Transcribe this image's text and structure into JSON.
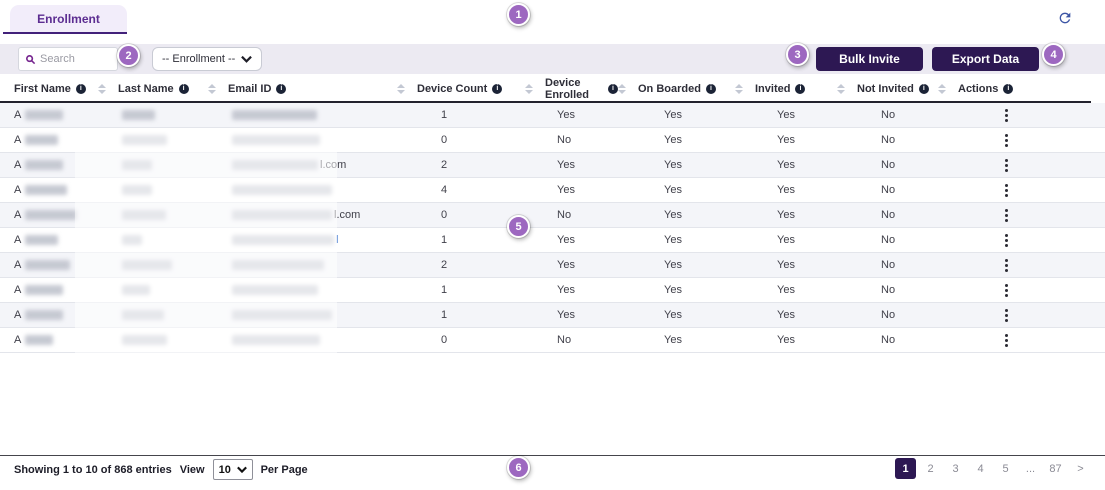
{
  "tab": {
    "label": "Enrollment"
  },
  "toolbar": {
    "search_placeholder": "Search",
    "enrollment_filter_value": "-- Enrollment --",
    "bulk_invite_label": "Bulk Invite",
    "export_data_label": "Export Data"
  },
  "table": {
    "columns": [
      {
        "label": "First Name",
        "sortable": true
      },
      {
        "label": "Last Name",
        "sortable": true
      },
      {
        "label": "Email ID",
        "sortable": true
      },
      {
        "label": "Device Count",
        "sortable": true
      },
      {
        "label": "Device Enrolled",
        "sortable": true
      },
      {
        "label": "On Boarded",
        "sortable": true
      },
      {
        "label": "Invited",
        "sortable": true
      },
      {
        "label": "Not Invited",
        "sortable": true
      },
      {
        "label": "Actions",
        "sortable": false
      }
    ],
    "rows": [
      {
        "first_initial": "A",
        "first_w": 38,
        "last_w": 33,
        "email_w": 85,
        "email_suffix": "",
        "suffix_blue": false,
        "device_count": "1",
        "device_enrolled": "Yes",
        "on_boarded": "Yes",
        "invited": "Yes",
        "not_invited": "No"
      },
      {
        "first_initial": "A",
        "first_w": 33,
        "last_w": 45,
        "email_w": 88,
        "email_suffix": "",
        "suffix_blue": false,
        "device_count": "0",
        "device_enrolled": "No",
        "on_boarded": "Yes",
        "invited": "Yes",
        "not_invited": "No"
      },
      {
        "first_initial": "A",
        "first_w": 38,
        "last_w": 30,
        "email_w": 86,
        "email_suffix": "l.com",
        "suffix_blue": false,
        "device_count": "2",
        "device_enrolled": "Yes",
        "on_boarded": "Yes",
        "invited": "Yes",
        "not_invited": "No"
      },
      {
        "first_initial": "A",
        "first_w": 42,
        "last_w": 30,
        "email_w": 100,
        "email_suffix": "",
        "suffix_blue": false,
        "device_count": "4",
        "device_enrolled": "Yes",
        "on_boarded": "Yes",
        "invited": "Yes",
        "not_invited": "No"
      },
      {
        "first_initial": "A",
        "first_w": 52,
        "last_w": 44,
        "email_w": 100,
        "email_suffix": "l.com",
        "suffix_blue": false,
        "device_count": "0",
        "device_enrolled": "No",
        "on_boarded": "Yes",
        "invited": "Yes",
        "not_invited": "No"
      },
      {
        "first_initial": "A",
        "first_w": 33,
        "last_w": 20,
        "email_w": 102,
        "email_suffix": "l",
        "suffix_blue": true,
        "device_count": "1",
        "device_enrolled": "Yes",
        "on_boarded": "Yes",
        "invited": "Yes",
        "not_invited": "No"
      },
      {
        "first_initial": "A",
        "first_w": 45,
        "last_w": 50,
        "email_w": 92,
        "email_suffix": "",
        "suffix_blue": false,
        "device_count": "2",
        "device_enrolled": "Yes",
        "on_boarded": "Yes",
        "invited": "Yes",
        "not_invited": "No"
      },
      {
        "first_initial": "A",
        "first_w": 38,
        "last_w": 28,
        "email_w": 86,
        "email_suffix": "",
        "suffix_blue": false,
        "device_count": "1",
        "device_enrolled": "Yes",
        "on_boarded": "Yes",
        "invited": "Yes",
        "not_invited": "No"
      },
      {
        "first_initial": "A",
        "first_w": 38,
        "last_w": 42,
        "email_w": 100,
        "email_suffix": "",
        "suffix_blue": false,
        "device_count": "1",
        "device_enrolled": "Yes",
        "on_boarded": "Yes",
        "invited": "Yes",
        "not_invited": "No"
      },
      {
        "first_initial": "A",
        "first_w": 28,
        "last_w": 45,
        "email_w": 88,
        "email_suffix": "",
        "suffix_blue": false,
        "device_count": "0",
        "device_enrolled": "No",
        "on_boarded": "Yes",
        "invited": "Yes",
        "not_invited": "No"
      }
    ]
  },
  "footer": {
    "showing_text": "Showing 1 to 10 of 868 entries",
    "view_label": "View",
    "page_size_value": "10",
    "per_page_label": "Per Page",
    "pages": [
      "1",
      "2",
      "3",
      "4",
      "5",
      "...",
      "87",
      ">"
    ],
    "active_page": "1"
  },
  "annotations": [
    "1",
    "2",
    "3",
    "4",
    "5",
    "6"
  ],
  "colors": {
    "accent_dark_purple": "#2d1853",
    "tab_purple": "#5c2d91",
    "badge_purple": "#9d68c0",
    "toolbar_bg": "#eceaf2",
    "stripe_bg": "#f4f5f9"
  }
}
